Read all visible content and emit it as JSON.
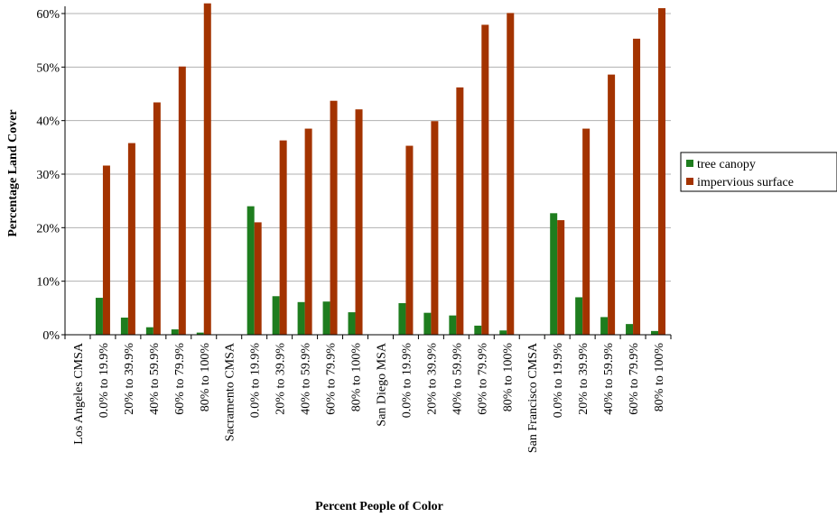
{
  "chart_data": {
    "type": "bar",
    "xlabel": "Percent People of Color",
    "ylabel": "Percentage Land Cover",
    "ylim": [
      0,
      60
    ],
    "yticks": [
      0,
      10,
      20,
      30,
      40,
      50,
      60
    ],
    "ytick_format": "%",
    "grid": true,
    "legend_position": "right",
    "categories": [
      "Los Angeles CMSA",
      "0.0% to 19.9%",
      "20% to 39.9%",
      "40% to 59.9%",
      "60% to 79.9%",
      "80% to 100%",
      "Sacramento CMSA",
      "0.0% to 19.9%",
      "20% to 39.9%",
      "40% to 59.9%",
      "60% to 79.9%",
      "80% to 100%",
      "San Diego MSA",
      "0.0% to 19.9%",
      "20% to 39.9%",
      "40% to 59.9%",
      "60% to 79.9%",
      "80% to 100%",
      "San Francisco CMSA",
      "0.0% to 19.9%",
      "20% to 39.9%",
      "40% to 59.9%",
      "60% to 79.9%",
      "80% to 100%"
    ],
    "series": [
      {
        "name": "tree canopy",
        "color": "#1e7d1e",
        "values": [
          null,
          6.9,
          3.2,
          1.4,
          1.0,
          0.4,
          null,
          24.0,
          7.2,
          6.1,
          6.2,
          4.2,
          null,
          5.9,
          4.1,
          3.6,
          1.7,
          0.8,
          null,
          22.7,
          7.0,
          3.3,
          2.0,
          0.7
        ]
      },
      {
        "name": "impervious surface",
        "color": "#a33300",
        "values": [
          null,
          31.6,
          35.8,
          43.4,
          50.1,
          61.9,
          null,
          21.0,
          36.3,
          38.5,
          43.7,
          42.1,
          null,
          35.3,
          39.9,
          46.2,
          57.9,
          60.1,
          null,
          21.4,
          38.5,
          48.6,
          55.3,
          61.0
        ]
      }
    ]
  }
}
